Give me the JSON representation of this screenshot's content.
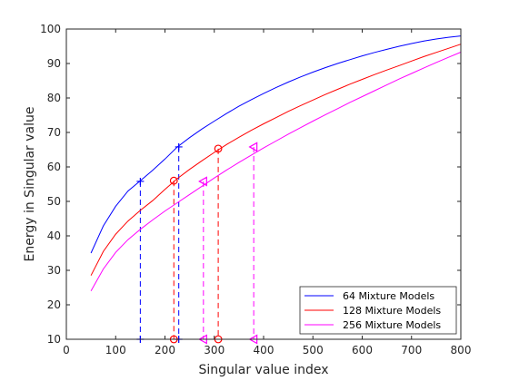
{
  "chart_data": {
    "type": "line",
    "title": "",
    "xlabel": "Singular value index",
    "ylabel": "Energy in Singular value",
    "xlim": [
      0,
      800
    ],
    "ylim": [
      10,
      100
    ],
    "xticks": [
      0,
      100,
      200,
      300,
      400,
      500,
      600,
      700,
      800
    ],
    "yticks": [
      10,
      20,
      30,
      40,
      50,
      60,
      70,
      80,
      90,
      100
    ],
    "grid": false,
    "legend_position": "bottom-right",
    "x": [
      50,
      75,
      100,
      125,
      150,
      175,
      200,
      225,
      250,
      275,
      300,
      325,
      350,
      375,
      400,
      425,
      450,
      475,
      500,
      525,
      550,
      575,
      600,
      625,
      650,
      675,
      700,
      725,
      750,
      775,
      800
    ],
    "series": [
      {
        "name": "64 Mixture Models",
        "color": "#0000ff",
        "values": [
          35.0,
          42.9,
          48.6,
          53.0,
          56.0,
          59.0,
          62.3,
          65.8,
          68.5,
          71.0,
          73.3,
          75.5,
          77.6,
          79.5,
          81.3,
          83.0,
          84.6,
          86.1,
          87.5,
          88.8,
          90.0,
          91.1,
          92.2,
          93.2,
          94.1,
          95.0,
          95.8,
          96.5,
          97.1,
          97.6,
          98.0
        ],
        "markers": [
          {
            "x": 150,
            "y": 55.8,
            "symbol": "+"
          },
          {
            "x": 228,
            "y": 65.8,
            "symbol": "+"
          },
          {
            "x": 150,
            "y": 10,
            "symbol": "+"
          },
          {
            "x": 228,
            "y": 10,
            "symbol": "+"
          }
        ],
        "droplines": [
          150,
          228
        ]
      },
      {
        "name": "128 Mixture Models",
        "color": "#ff0000",
        "values": [
          28.5,
          35.5,
          40.5,
          44.3,
          47.4,
          50.2,
          53.5,
          56.6,
          59.3,
          61.8,
          64.2,
          66.5,
          68.6,
          70.6,
          72.5,
          74.3,
          76.1,
          77.8,
          79.4,
          81.0,
          82.5,
          84.0,
          85.4,
          86.8,
          88.1,
          89.4,
          90.7,
          92.0,
          93.2,
          94.4,
          95.6
        ],
        "markers": [
          {
            "x": 218,
            "y": 56.0,
            "symbol": "o"
          },
          {
            "x": 308,
            "y": 65.3,
            "symbol": "o"
          },
          {
            "x": 218,
            "y": 10,
            "symbol": "o"
          },
          {
            "x": 308,
            "y": 10,
            "symbol": "o"
          }
        ],
        "droplines": [
          218,
          308
        ]
      },
      {
        "name": "256 Mixture Models",
        "color": "#ff00ff",
        "values": [
          24.0,
          30.4,
          35.2,
          38.9,
          41.9,
          44.6,
          47.2,
          49.6,
          52.0,
          54.4,
          56.8,
          59.1,
          61.3,
          63.4,
          65.5,
          67.5,
          69.5,
          71.4,
          73.3,
          75.1,
          76.9,
          78.7,
          80.4,
          82.1,
          83.8,
          85.5,
          87.1,
          88.7,
          90.3,
          91.8,
          93.3
        ],
        "markers": [
          {
            "x": 278,
            "y": 55.8,
            "symbol": "<"
          },
          {
            "x": 380,
            "y": 65.8,
            "symbol": "<"
          },
          {
            "x": 278,
            "y": 10,
            "symbol": "<"
          },
          {
            "x": 380,
            "y": 10,
            "symbol": "<"
          }
        ],
        "droplines": [
          278,
          380
        ]
      }
    ]
  }
}
